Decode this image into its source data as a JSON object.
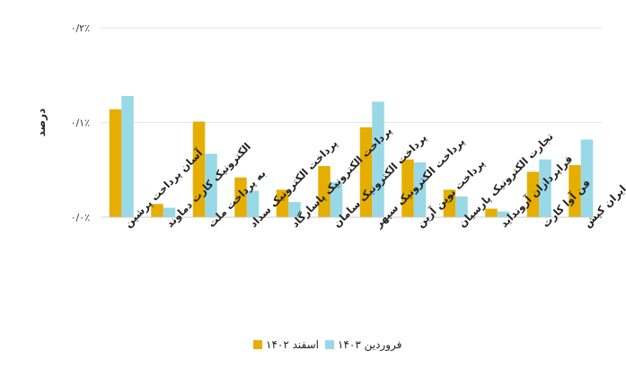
{
  "chart_data": {
    "type": "bar",
    "ylabel": "درصد",
    "ylim": [
      0,
      0.2
    ],
    "yticks": [
      0,
      0.1,
      0.2
    ],
    "ytick_labels": [
      "۰/۰٪",
      "۰/۱٪",
      "۰/۲٪"
    ],
    "grid": true,
    "legend_position": "bottom",
    "categories": [
      "آسان پرداخت پرشین",
      "الکترونیک کارت دماوند",
      "به پرداخت ملت",
      "پرداخت الکترونیک سداد",
      "پرداخت الکترونیک پاسارگاد",
      "پرداخت الکترونیک سامان",
      "پرداخت الکترونیک سپهر",
      "پرداخت نوین آرین",
      "تجارت الکترونیک پارسیان",
      "فراپردازان آرونداید",
      "فن آوا کارت",
      "کارت اعتباری ایران کیش"
    ],
    "series": [
      {
        "name": "اسفند ۱۴۰۲",
        "color": "#E5AE00",
        "values": [
          0.114,
          0.014,
          0.101,
          0.042,
          0.029,
          0.054,
          0.095,
          0.061,
          0.029,
          0.009,
          0.048,
          0.055
        ]
      },
      {
        "name": "فروردین ۱۴۰۳",
        "color": "#99D8E6",
        "values": [
          0.128,
          0.01,
          0.067,
          0.028,
          0.016,
          0.037,
          0.122,
          0.058,
          0.022,
          0.006,
          0.061,
          0.082
        ]
      }
    ]
  }
}
